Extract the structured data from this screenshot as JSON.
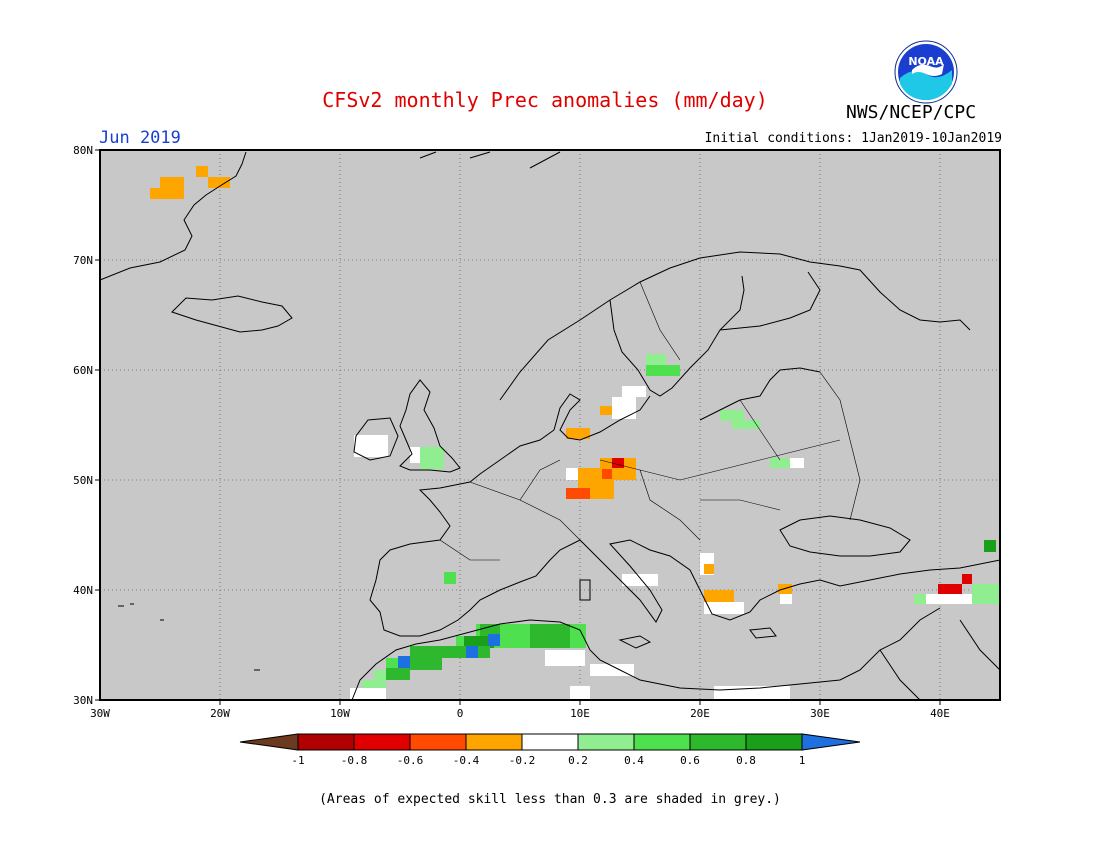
{
  "title": "CFSv2 monthly Prec anomalies (mm/day)",
  "month": "Jun 2019",
  "initial_conditions": "Initial conditions: 1Jan2019-10Jan2019",
  "agency": "NWS/NCEP/CPC",
  "logo_text": "NOAA",
  "map": {
    "region": "Europe / North Africa",
    "lon_range": [
      -30,
      45
    ],
    "lat_range": [
      30,
      80
    ],
    "background_color": "#c8c8c8",
    "lat_labels": [
      "80N",
      "70N",
      "60N",
      "50N",
      "40N",
      "30N"
    ],
    "lon_labels": [
      "30W",
      "20W",
      "10W",
      "0",
      "10E",
      "20E",
      "30E",
      "40E"
    ]
  },
  "colorbar": {
    "tick_labels": [
      "-1",
      "-0.8",
      "-0.6",
      "-0.4",
      "-0.2",
      "0.2",
      "0.4",
      "0.6",
      "0.8",
      "1"
    ],
    "colors": [
      "#6b3a1f",
      "#b00000",
      "#e00000",
      "#ff4a00",
      "#ffa500",
      "#ffffff",
      "#90ee90",
      "#4ee04e",
      "#2eb82e",
      "#1a9f1a",
      "#1e6fe0"
    ]
  },
  "footnote": "(Areas of expected skill less than 0.3 are shaded in grey.)"
}
